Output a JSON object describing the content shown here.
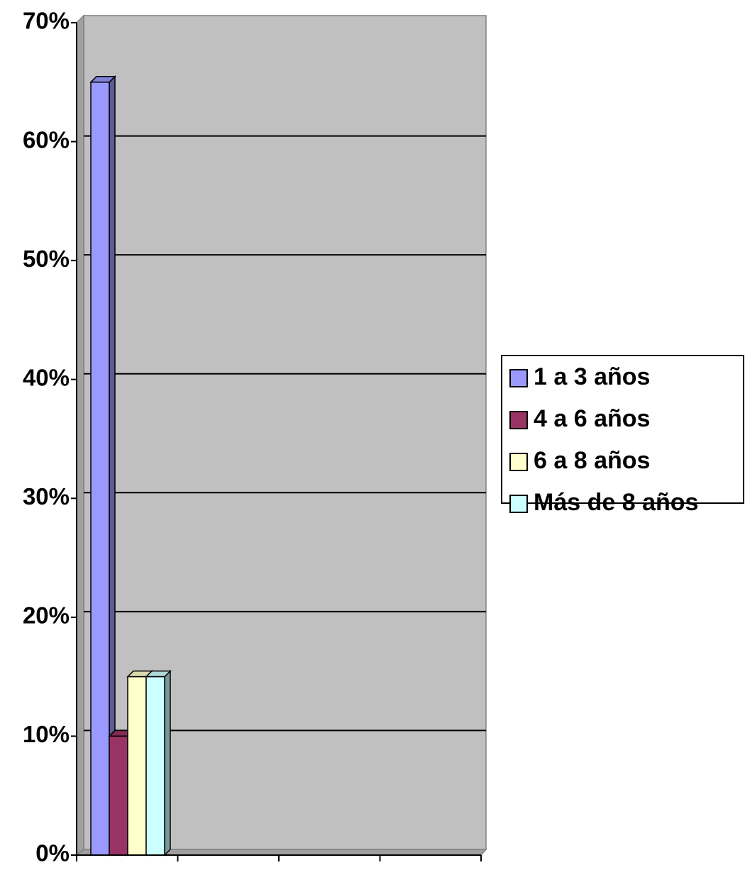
{
  "chart_data": {
    "type": "bar3d",
    "categories": [
      null,
      null,
      null,
      null
    ],
    "series": [
      {
        "name": "1 a 3 años",
        "color": "#9999ff",
        "values": [
          65,
          null,
          null,
          null
        ]
      },
      {
        "name": "4 a 6 años",
        "color": "#993366",
        "values": [
          10,
          null,
          null,
          null
        ]
      },
      {
        "name": "6 a 8 años",
        "color": "#ffffcc",
        "values": [
          15,
          null,
          null,
          null
        ]
      },
      {
        "name": "Más de 8 años",
        "color": "#ccffff",
        "values": [
          15,
          null,
          null,
          null
        ]
      }
    ],
    "ylim": [
      0,
      70
    ],
    "yticks": [
      {
        "value": 0,
        "label": "0%"
      },
      {
        "value": 10,
        "label": "10%"
      },
      {
        "value": 20,
        "label": "20%"
      },
      {
        "value": 30,
        "label": "30%"
      },
      {
        "value": 40,
        "label": "40%"
      },
      {
        "value": 50,
        "label": "50%"
      },
      {
        "value": 60,
        "label": "60%"
      },
      {
        "value": 70,
        "label": "70%"
      }
    ],
    "grid": true,
    "legend": "right"
  }
}
